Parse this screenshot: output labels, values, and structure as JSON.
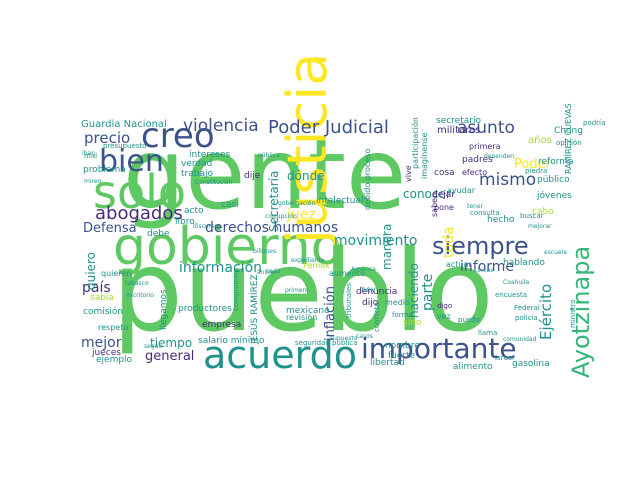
{
  "palette": {
    "green": "#5ec962",
    "teal": "#21918c",
    "blue": "#3b528b",
    "purple": "#472d7b",
    "yellow": "#fde725",
    "lime": "#aadc32",
    "mint": "#35b779",
    "seafoam": "#2c728e"
  },
  "words": [
    {
      "text": "gente",
      "color": "green"
    },
    {
      "text": "pueblo",
      "color": "green"
    },
    {
      "text": "gobierno",
      "color": "green"
    },
    {
      "text": "justicia",
      "color": "yellow"
    },
    {
      "text": "sólo",
      "color": "green"
    },
    {
      "text": "acuerdo",
      "color": "teal"
    },
    {
      "text": "importante",
      "color": "blue"
    },
    {
      "text": "creo",
      "color": "blue"
    },
    {
      "text": "bien",
      "color": "blue"
    },
    {
      "text": "siempre",
      "color": "blue"
    },
    {
      "text": "Ayotzinapa",
      "color": "mint"
    },
    {
      "text": "abogados",
      "color": "purple"
    },
    {
      "text": "Poder Judicial",
      "color": "blue"
    },
    {
      "text": "violencia",
      "color": "blue"
    },
    {
      "text": "precio",
      "color": "blue"
    },
    {
      "text": "asunto",
      "color": "blue"
    },
    {
      "text": "mismo",
      "color": "blue"
    },
    {
      "text": "derechos humanos",
      "color": "blue"
    },
    {
      "text": "información",
      "color": "teal"
    },
    {
      "text": "movimiento",
      "color": "teal"
    },
    {
      "text": "informe",
      "color": "blue"
    },
    {
      "text": "Ejército",
      "color": "teal"
    },
    {
      "text": "juez",
      "color": "yellow"
    },
    {
      "text": "dónde",
      "color": "teal"
    },
    {
      "text": "mejor",
      "color": "blue"
    },
    {
      "text": "país",
      "color": "purple"
    },
    {
      "text": "general",
      "color": "purple"
    },
    {
      "text": "tiempo",
      "color": "teal"
    },
    {
      "text": "quiero",
      "color": "teal"
    },
    {
      "text": "Defensa",
      "color": "blue"
    },
    {
      "text": "conocer",
      "color": "teal"
    },
    {
      "text": "toda",
      "color": "yellow"
    },
    {
      "text": "parte",
      "color": "teal"
    },
    {
      "text": "haciendo",
      "color": "teal"
    },
    {
      "text": "manera",
      "color": "teal"
    },
    {
      "text": "inflación",
      "color": "blue"
    },
    {
      "text": "Secretaría",
      "color": "teal"
    },
    {
      "text": "Poder",
      "color": "yellow"
    },
    {
      "text": "Guardia Nacional",
      "color": "teal"
    },
    {
      "text": "militares",
      "color": "purple"
    },
    {
      "text": "secretario",
      "color": "teal"
    },
    {
      "text": "años",
      "color": "lime"
    },
    {
      "text": "reforma",
      "color": "teal"
    },
    {
      "text": "público",
      "color": "teal"
    },
    {
      "text": "Chong",
      "color": "teal"
    },
    {
      "text": "intereses",
      "color": "teal"
    },
    {
      "text": "verdad",
      "color": "teal"
    },
    {
      "text": "trabajo",
      "color": "teal"
    },
    {
      "text": "problema",
      "color": "teal"
    },
    {
      "text": "dije",
      "color": "purple"
    },
    {
      "text": "casi",
      "color": "teal"
    },
    {
      "text": "acto",
      "color": "teal"
    },
    {
      "text": "libro",
      "color": "teal"
    },
    {
      "text": "debe",
      "color": "teal"
    },
    {
      "text": "sabía",
      "color": "lime"
    },
    {
      "text": "comisión",
      "color": "teal"
    },
    {
      "text": "jueces",
      "color": "purple"
    },
    {
      "text": "respeto",
      "color": "teal"
    },
    {
      "text": "ejemplo",
      "color": "teal"
    },
    {
      "text": "llegamos",
      "color": "teal"
    },
    {
      "text": "productores",
      "color": "teal"
    },
    {
      "text": "empresa",
      "color": "purple"
    },
    {
      "text": "JESÚS RAMÍREZ",
      "color": "teal"
    },
    {
      "text": "mexicano",
      "color": "teal"
    },
    {
      "text": "revisión",
      "color": "teal"
    },
    {
      "text": "salario mínimo",
      "color": "teal"
    },
    {
      "text": "intelectual",
      "color": "teal"
    },
    {
      "text": "aumento",
      "color": "teal"
    },
    {
      "text": "denuncia",
      "color": "purple"
    },
    {
      "text": "dijo",
      "color": "purple"
    },
    {
      "text": "sino",
      "color": "lime"
    },
    {
      "text": "nombre",
      "color": "teal"
    },
    {
      "text": "fuerte",
      "color": "teal"
    },
    {
      "text": "libertad",
      "color": "teal"
    },
    {
      "text": "alimento",
      "color": "teal"
    },
    {
      "text": "gasolina",
      "color": "teal"
    },
    {
      "text": "hablando",
      "color": "teal"
    },
    {
      "text": "actuar",
      "color": "teal"
    },
    {
      "text": "hecho",
      "color": "teal"
    },
    {
      "text": "efecto",
      "color": "purple"
    },
    {
      "text": "cabo",
      "color": "lime"
    },
    {
      "text": "jóvenes",
      "color": "teal"
    },
    {
      "text": "padres",
      "color": "purple"
    },
    {
      "text": "cosa",
      "color": "purple"
    },
    {
      "text": "primera",
      "color": "purple"
    },
    {
      "text": "dejar",
      "color": "purple"
    },
    {
      "text": "pone",
      "color": "purple"
    },
    {
      "text": "vive",
      "color": "purple"
    },
    {
      "text": "saben",
      "color": "purple"
    },
    {
      "text": "RAMÍREZ CUEVAS",
      "color": "teal"
    },
    {
      "text": "debido proceso",
      "color": "teal"
    },
    {
      "text": "participación",
      "color": "teal"
    },
    {
      "text": "imagínense",
      "color": "teal"
    },
    {
      "text": "ayudar",
      "color": "teal"
    },
    {
      "text": "Pemex",
      "color": "lime"
    },
    {
      "text": "quieren",
      "color": "teal"
    },
    {
      "text": "compromiso",
      "color": "teal"
    },
    {
      "text": "hoy",
      "color": "teal"
    },
    {
      "text": "medio",
      "color": "teal"
    },
    {
      "text": "tribunales",
      "color": "teal"
    },
    {
      "text": "vez",
      "color": "teal"
    },
    {
      "text": "digo",
      "color": "purple"
    },
    {
      "text": "consulta",
      "color": "teal"
    },
    {
      "text": "buscar",
      "color": "teal"
    },
    {
      "text": "podría",
      "color": "teal"
    },
    {
      "text": "opinión",
      "color": "teal"
    },
    {
      "text": "Federal",
      "color": "teal"
    },
    {
      "text": "policía",
      "color": "teal"
    },
    {
      "text": "ministro",
      "color": "teal"
    },
    {
      "text": "piedra",
      "color": "teal"
    },
    {
      "text": "encuesta",
      "color": "teal"
    },
    {
      "text": "puedo",
      "color": "teal"
    },
    {
      "text": "forma",
      "color": "teal"
    },
    {
      "text": "llama",
      "color": "teal"
    },
    {
      "text": "Israel",
      "color": "teal"
    },
    {
      "text": "seguridad pública",
      "color": "teal"
    },
    {
      "text": "conflicto",
      "color": "teal"
    },
    {
      "text": "presupuesto",
      "color": "teal"
    },
    {
      "text": "mal",
      "color": "teal"
    },
    {
      "text": "iban",
      "color": "teal"
    },
    {
      "text": "miren",
      "color": "teal"
    },
    {
      "text": "Constitución",
      "color": "teal"
    },
    {
      "text": "pública",
      "color": "teal"
    },
    {
      "text": "dependen",
      "color": "teal"
    },
    {
      "text": "gobernación",
      "color": "teal"
    },
    {
      "text": "discurso",
      "color": "teal"
    },
    {
      "text": "billones",
      "color": "teal"
    },
    {
      "text": "ánimo",
      "color": "teal"
    },
    {
      "text": "expediente",
      "color": "teal"
    },
    {
      "text": "cada",
      "color": "teal"
    },
    {
      "text": "tabasco",
      "color": "teal"
    },
    {
      "text": "seguir",
      "color": "teal"
    },
    {
      "text": "escritorio",
      "color": "teal"
    },
    {
      "text": "primero",
      "color": "teal"
    },
    {
      "text": "América",
      "color": "teal"
    },
    {
      "text": "supuesto",
      "color": "teal"
    },
    {
      "text": "comunidad",
      "color": "teal"
    },
    {
      "text": "casos",
      "color": "teal"
    },
    {
      "text": "corrupción",
      "color": "teal"
    },
    {
      "text": "tener",
      "color": "teal"
    },
    {
      "text": "Coahuila",
      "color": "teal"
    },
    {
      "text": "Lineas",
      "color": "teal"
    },
    {
      "text": "mejorar",
      "color": "teal"
    },
    {
      "text": "escuela",
      "color": "teal"
    }
  ]
}
